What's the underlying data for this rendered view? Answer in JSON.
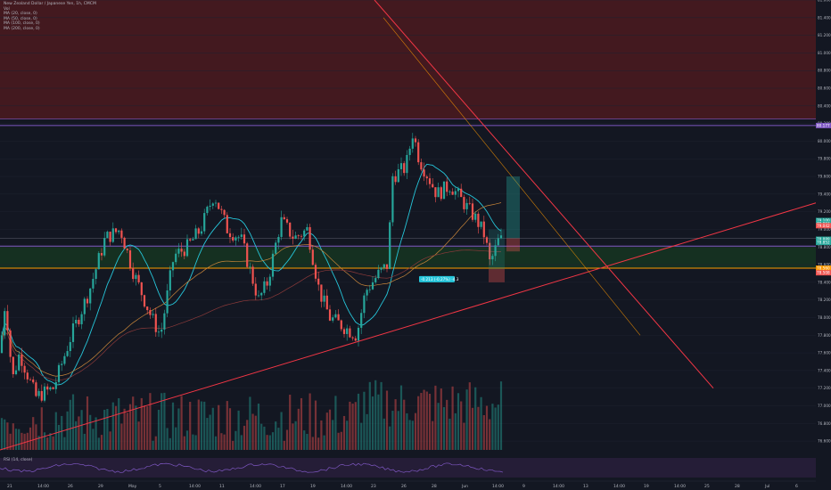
{
  "legend": {
    "title": "New Zealand Dollar / Japanese Yen, 1h, CMCM",
    "line2": "Vol",
    "line3": "MA (20, close, 0)",
    "line4": "MA (50, close, 0)",
    "line5": "MA (100, close, 0)",
    "line6": "MA (200, close, 0)"
  },
  "rsi_label": "RSI (14, close)",
  "measure_label": "-0.213 (-0.27%) -4.3",
  "colors": {
    "up": "#26a69a",
    "down": "#ef5350",
    "ma_blue": "#26c6da",
    "ma_orange": "#c9863a",
    "ma_dark": "#8b3a3a",
    "trend": "#f23645",
    "zone_green": "#1b5e20",
    "zone_red": "#7f1d1d",
    "purple": "#7e57c2",
    "orange": "#ff9800"
  },
  "chart_data": {
    "type": "candlestick",
    "ylim": [
      76.5,
      81.6
    ],
    "y_ticks": [
      81.6,
      81.4,
      81.2,
      81.0,
      80.8,
      80.6,
      80.4,
      80.2,
      80.0,
      79.8,
      79.6,
      79.4,
      79.2,
      79.0,
      78.8,
      78.6,
      78.4,
      78.2,
      78.0,
      77.8,
      77.6,
      77.4,
      77.2,
      77.0,
      76.8,
      76.6
    ],
    "x_tick_labels": [
      "21",
      "14:00",
      "26",
      "29",
      "May",
      "5",
      "14:00",
      "11",
      "14:00",
      "17",
      "19",
      "14:00",
      "23",
      "26",
      "28",
      "Jun",
      "14:00",
      "9",
      "14:00",
      "13",
      "14:00",
      "19",
      "14:00",
      "25",
      "28",
      "Jul",
      "6"
    ],
    "price_tags": [
      {
        "value": "80.177",
        "color": "#7e57c2"
      },
      {
        "value": "79.100",
        "color": "#26a69a"
      },
      {
        "value": "79.063",
        "color": "#26a69a"
      },
      {
        "value": "79.042",
        "color": "#ef5350"
      },
      {
        "value": "78.888",
        "color": "#26a69a"
      },
      {
        "value": "78.852",
        "color": "#26a69a"
      },
      {
        "value": "78.560",
        "color": "#ff9800"
      },
      {
        "value": "78.508",
        "color": "#ef5350"
      }
    ],
    "horizontal_levels": [
      80.177,
      78.81,
      78.56
    ],
    "zones": [
      {
        "name": "resistance",
        "from": 81.6,
        "to": 80.25,
        "color": "red"
      },
      {
        "name": "demand",
        "from": 78.81,
        "to": 78.56,
        "color": "green"
      }
    ]
  }
}
